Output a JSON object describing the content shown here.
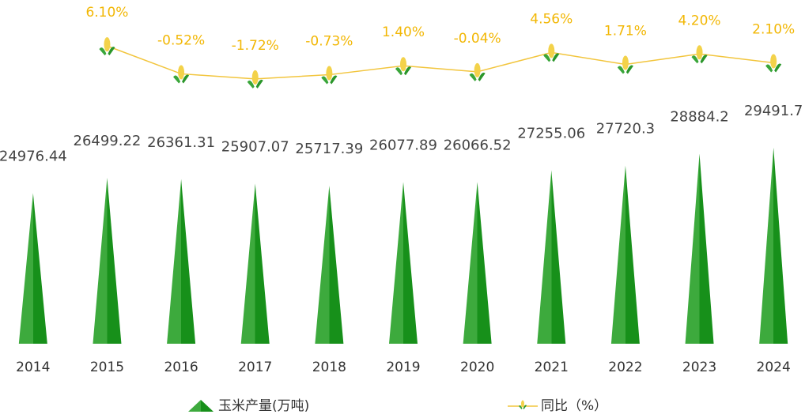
{
  "chart_data": {
    "type": "bar-line",
    "categories": [
      "2014",
      "2015",
      "2016",
      "2017",
      "2018",
      "2019",
      "2020",
      "2021",
      "2022",
      "2023",
      "2024"
    ],
    "series": [
      {
        "name": "玉米产量(万吨)",
        "type": "bar",
        "color": "#2f9e2f",
        "values": [
          24976.44,
          26499.22,
          26361.31,
          25907.07,
          25717.39,
          26077.89,
          26066.52,
          27255.06,
          27720.3,
          28884.2,
          29491.7
        ]
      },
      {
        "name": "同比（%）",
        "type": "line",
        "axis": "y2",
        "color": "#f2c53d",
        "values": [
          null,
          6.1,
          -0.52,
          -1.72,
          -0.73,
          1.4,
          -0.04,
          4.56,
          1.71,
          4.2,
          2.1
        ],
        "value_labels": [
          null,
          "6.10%",
          "-0.52%",
          "-1.72%",
          "-0.73%",
          "1.40%",
          "-0.04%",
          "4.56%",
          "1.71%",
          "4.20%",
          "2.10%"
        ]
      }
    ],
    "ylim": [
      10000,
      32000
    ],
    "y2lim": [
      -4,
      8
    ]
  }
}
